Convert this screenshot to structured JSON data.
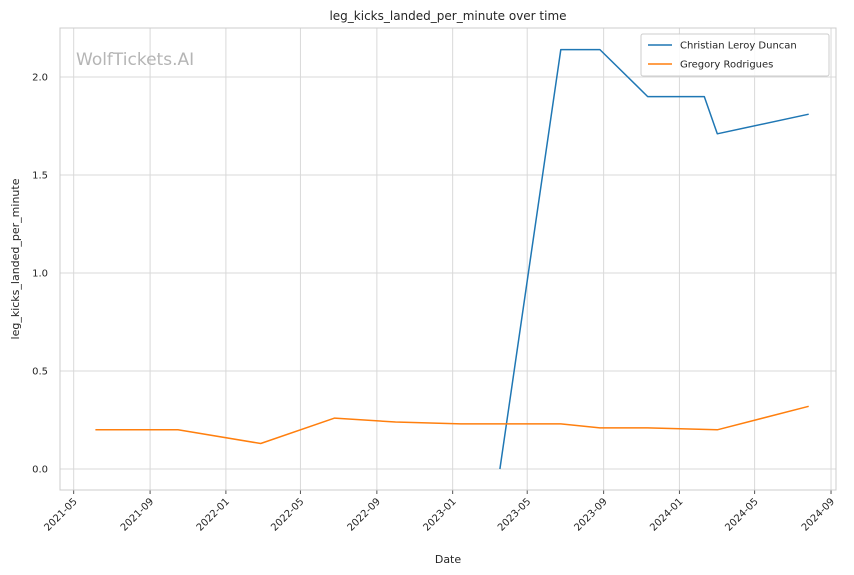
{
  "chart_data": {
    "type": "line",
    "title": "leg_kicks_landed_per_minute over time",
    "xlabel": "Date",
    "ylabel": "leg_kicks_landed_per_minute",
    "watermark": "WolfTickets.AI",
    "x_ticks": [
      "2021-05",
      "2021-09",
      "2022-01",
      "2022-05",
      "2022-09",
      "2023-01",
      "2023-05",
      "2023-09",
      "2024-01",
      "2024-05",
      "2024-09"
    ],
    "y_ticks": [
      "0.0",
      "0.5",
      "1.0",
      "1.5",
      "2.0"
    ],
    "xlim": [
      "2021-04-09",
      "2024-09-09"
    ],
    "ylim": [
      -0.107,
      2.25
    ],
    "grid": true,
    "legend_position": "top-right",
    "series": [
      {
        "name": "Christian Leroy Duncan",
        "color": "#1f77b4",
        "x": [
          "2023-03-18",
          "2023-06-24",
          "2023-08-26",
          "2023-11-11",
          "2024-02-10",
          "2024-03-02",
          "2024-07-27"
        ],
        "values": [
          0.0,
          2.14,
          2.14,
          1.9,
          1.9,
          1.71,
          1.81
        ]
      },
      {
        "name": "Gregory Rodrigues",
        "color": "#ff7f0e",
        "x": [
          "2021-06-05",
          "2021-10-16",
          "2022-02-26",
          "2022-06-25",
          "2022-10-01",
          "2023-01-14",
          "2023-03-18",
          "2023-06-24",
          "2023-08-26",
          "2023-11-11",
          "2024-03-02",
          "2024-07-27"
        ],
        "values": [
          0.2,
          0.2,
          0.13,
          0.26,
          0.24,
          0.23,
          0.23,
          0.23,
          0.21,
          0.21,
          0.2,
          0.32
        ]
      }
    ]
  }
}
